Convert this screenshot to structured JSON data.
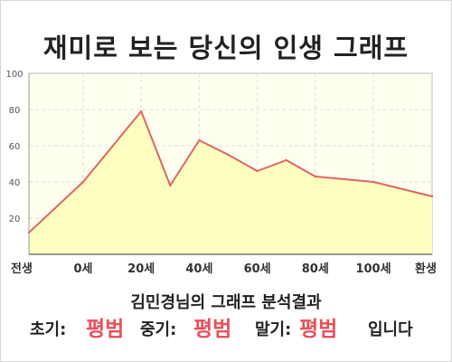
{
  "title": "재미로 보는 당신의 인생 그래프",
  "subtitle": "김민경님의 그래프 분석결과",
  "result": {
    "early_label": "초기:",
    "early_value": "평범",
    "mid_label": "중기:",
    "mid_value": "평범",
    "late_label": "말기:",
    "late_value": "평범",
    "suffix": "입니다"
  },
  "colors": {
    "line": "#e06464",
    "area": "#ffffc0",
    "plot_bg": "#fffff0",
    "highlight": "#e8505b"
  },
  "chart_data": {
    "type": "area",
    "x_ticks": [
      "전생",
      "0세",
      "20세",
      "40세",
      "60세",
      "80세",
      "100세",
      "환생"
    ],
    "y_ticks": [
      "20",
      "40",
      "60",
      "80",
      "100"
    ],
    "ylim": [
      0,
      100
    ],
    "grid": true,
    "series": [
      {
        "points": [
          {
            "x": "전생",
            "y": 12
          },
          {
            "x": "0세",
            "y": 40
          },
          {
            "x": "20세",
            "y": 79
          },
          {
            "x": "30세",
            "y": 38
          },
          {
            "x": "40세",
            "y": 63
          },
          {
            "x": "50세",
            "y": 55
          },
          {
            "x": "60세",
            "y": 46
          },
          {
            "x": "70세",
            "y": 52
          },
          {
            "x": "80세",
            "y": 43
          },
          {
            "x": "100세",
            "y": 40
          },
          {
            "x": "환생",
            "y": 32
          }
        ]
      }
    ]
  }
}
